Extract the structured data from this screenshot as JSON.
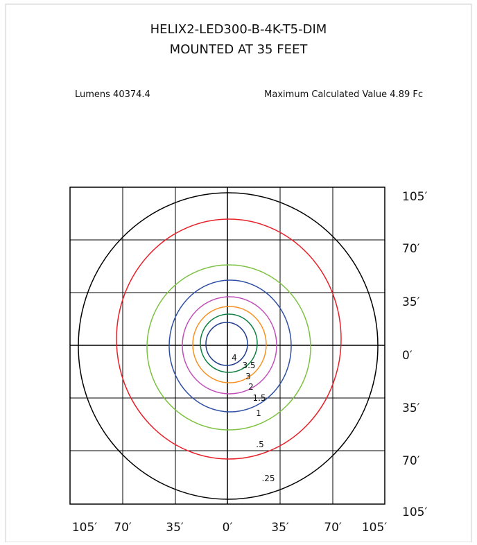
{
  "header": {
    "title_line1": "HELIX2-LED300-B-4K-T5-DIM",
    "title_line2": "MOUNTED AT 35 FEET",
    "lumens": "Lumens 40374.4",
    "max_value": "Maximum Calculated Value 4.89 Fc"
  },
  "right_axis": [
    "105′",
    "70′",
    "35′",
    "0′",
    "35′",
    "70′",
    "105′"
  ],
  "bottom_axis": [
    "105′",
    "70′",
    "35′",
    "0′",
    "35′",
    "70′",
    "105′"
  ],
  "contour_labels": [
    "4",
    "3.5",
    "3",
    "2",
    "1.5",
    "1",
    ".5",
    ".25"
  ]
}
